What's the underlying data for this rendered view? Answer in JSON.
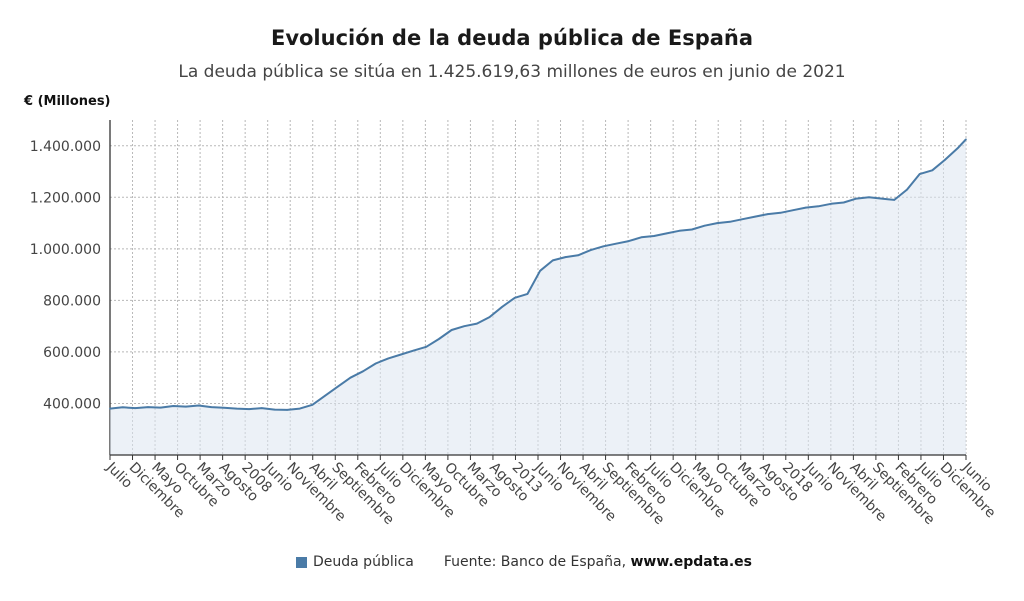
{
  "header": {
    "title": "Evolución de la deuda pública de España",
    "subtitle": "La deuda pública se sitúa en 1.425.619,63 millones de euros en junio de 2021",
    "unit": "€ (Millones)"
  },
  "legend": {
    "label": "Deuda pública",
    "source_prefix": "Fuente: Banco de España, ",
    "source_site": "www.epdata.es"
  },
  "colors": {
    "line": "#4a7ba7",
    "fill": "#dde6f0",
    "grid": "#b8b8b8"
  },
  "chart_data": {
    "type": "area",
    "title": "Evolución de la deuda pública de España",
    "ylabel": "€ (Millones)",
    "ylim": [
      200000,
      1500000
    ],
    "yticks": [
      400000,
      600000,
      800000,
      1000000,
      1200000,
      1400000
    ],
    "ytick_labels": [
      "400.000",
      "600.000",
      "800.000",
      "1.000.000",
      "1.200.000",
      "1.400.000"
    ],
    "grid": true,
    "x_start": "2004-07",
    "x_end": "2021-06",
    "xtick_labels": [
      "Julio",
      "Diciembre",
      "Mayo",
      "Octubre",
      "Marzo",
      "Agosto",
      "2008",
      "Junio",
      "Noviembre",
      "Abril",
      "Septiembre",
      "Febrero",
      "Julio",
      "Diciembre",
      "Mayo",
      "Octubre",
      "Marzo",
      "Agosto",
      "2013",
      "Junio",
      "Noviembre",
      "Abril",
      "Septiembre",
      "Febrero",
      "Julio",
      "Diciembre",
      "Mayo",
      "Octubre",
      "Marzo",
      "Agosto",
      "2018",
      "Junio",
      "Noviembre",
      "Abril",
      "Septiembre",
      "Febrero",
      "Julio",
      "Diciembre",
      "Junio"
    ],
    "series": [
      {
        "name": "Deuda pública",
        "x": [
          "2004-07",
          "2004-10",
          "2005-01",
          "2005-04",
          "2005-07",
          "2005-10",
          "2006-01",
          "2006-04",
          "2006-07",
          "2006-10",
          "2007-01",
          "2007-04",
          "2007-07",
          "2007-10",
          "2008-01",
          "2008-04",
          "2008-07",
          "2008-10",
          "2009-01",
          "2009-04",
          "2009-07",
          "2009-10",
          "2010-01",
          "2010-04",
          "2010-07",
          "2010-10",
          "2011-01",
          "2011-04",
          "2011-07",
          "2011-10",
          "2012-01",
          "2012-04",
          "2012-07",
          "2012-10",
          "2013-01",
          "2013-04",
          "2013-07",
          "2013-10",
          "2014-01",
          "2014-04",
          "2014-07",
          "2014-10",
          "2015-01",
          "2015-04",
          "2015-07",
          "2015-10",
          "2016-01",
          "2016-04",
          "2016-07",
          "2016-10",
          "2017-01",
          "2017-04",
          "2017-07",
          "2017-10",
          "2018-01",
          "2018-04",
          "2018-07",
          "2018-10",
          "2019-01",
          "2019-04",
          "2019-07",
          "2019-10",
          "2020-01",
          "2020-04",
          "2020-07",
          "2020-10",
          "2021-01",
          "2021-04",
          "2021-06"
        ],
        "values": [
          380000,
          385000,
          382000,
          386000,
          384000,
          390000,
          388000,
          392000,
          386000,
          383000,
          380000,
          378000,
          382000,
          376000,
          375000,
          380000,
          395000,
          430000,
          465000,
          500000,
          525000,
          555000,
          575000,
          590000,
          605000,
          620000,
          650000,
          685000,
          700000,
          710000,
          735000,
          775000,
          810000,
          825000,
          915000,
          955000,
          968000,
          975000,
          995000,
          1010000,
          1020000,
          1030000,
          1045000,
          1050000,
          1060000,
          1070000,
          1075000,
          1090000,
          1100000,
          1105000,
          1115000,
          1125000,
          1135000,
          1140000,
          1150000,
          1160000,
          1165000,
          1175000,
          1180000,
          1195000,
          1200000,
          1195000,
          1190000,
          1230000,
          1290000,
          1305000,
          1345000,
          1390000,
          1425000
        ]
      }
    ]
  }
}
